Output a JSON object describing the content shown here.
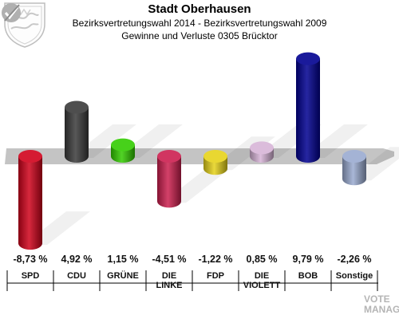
{
  "header": {
    "title": "Stadt Oberhausen",
    "subtitle": "Bezirksvertretungswahl 2014 - Bezirksvertretungswahl 2009",
    "subtitle2": "Gewinne und Verluste 0305 Brücktor"
  },
  "watermark": {
    "line1": "VOTE",
    "line2": "MANAGER"
  },
  "chart_data": {
    "type": "bar",
    "categories": [
      "SPD",
      "CDU",
      "GRÜNE",
      "DIE LINKE",
      "FDP",
      "DIE VIOLETTEN",
      "BOB",
      "Sonstige"
    ],
    "category_labels": [
      "SPD",
      "CDU",
      "GRÜNE",
      "DIE\nLINKE",
      "FDP",
      "DIE\nVIOLETT",
      "BOB",
      "Sonstige"
    ],
    "values": [
      -8.73,
      4.92,
      1.15,
      -4.51,
      -1.22,
      0.85,
      9.79,
      -2.26
    ],
    "value_labels": [
      "-8,73 %",
      "4,92 %",
      "1,15 %",
      "-4,51 %",
      "-1,22 %",
      "0,85 %",
      "9,79 %",
      "-2,26 %"
    ],
    "colors": [
      "#d0021b",
      "#3a3a3a",
      "#33cc00",
      "#cc1f4f",
      "#e6d21a",
      "#d7b4d7",
      "#000090",
      "#9aaad0"
    ],
    "ylim": [
      -9,
      10
    ],
    "grid": false,
    "legend": "none"
  }
}
